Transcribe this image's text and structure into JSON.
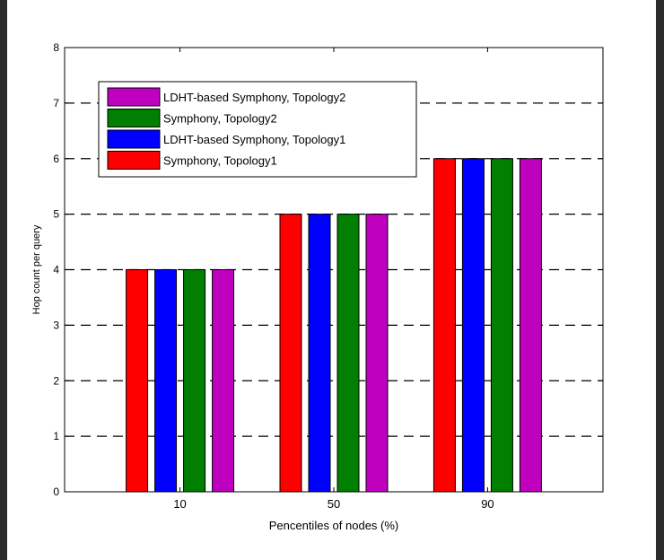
{
  "chart_data": {
    "type": "bar",
    "title": "",
    "xlabel": "Pencentiles of nodes (%)",
    "ylabel": "Hop count per query",
    "categories": [
      "10",
      "50",
      "90"
    ],
    "ylim": [
      0,
      8
    ],
    "yticks": [
      "0",
      "1",
      "2",
      "3",
      "4",
      "5",
      "6",
      "7",
      "8"
    ],
    "grid": "horizontal dashed",
    "legend_position": "top-left",
    "series": [
      {
        "name": "Symphony, Topology1",
        "color": "#ff0000",
        "values": [
          4,
          5,
          6
        ]
      },
      {
        "name": "LDHT-based Symphony, Topology1",
        "color": "#0000ff",
        "values": [
          4,
          5,
          6
        ]
      },
      {
        "name": "Symphony, Topology2",
        "color": "#007f00",
        "values": [
          4,
          5,
          6
        ]
      },
      {
        "name": "LDHT-based Symphony, Topology2",
        "color": "#bf00bf",
        "values": [
          4,
          5,
          6
        ]
      }
    ],
    "legend_order": [
      3,
      2,
      1,
      0
    ]
  }
}
